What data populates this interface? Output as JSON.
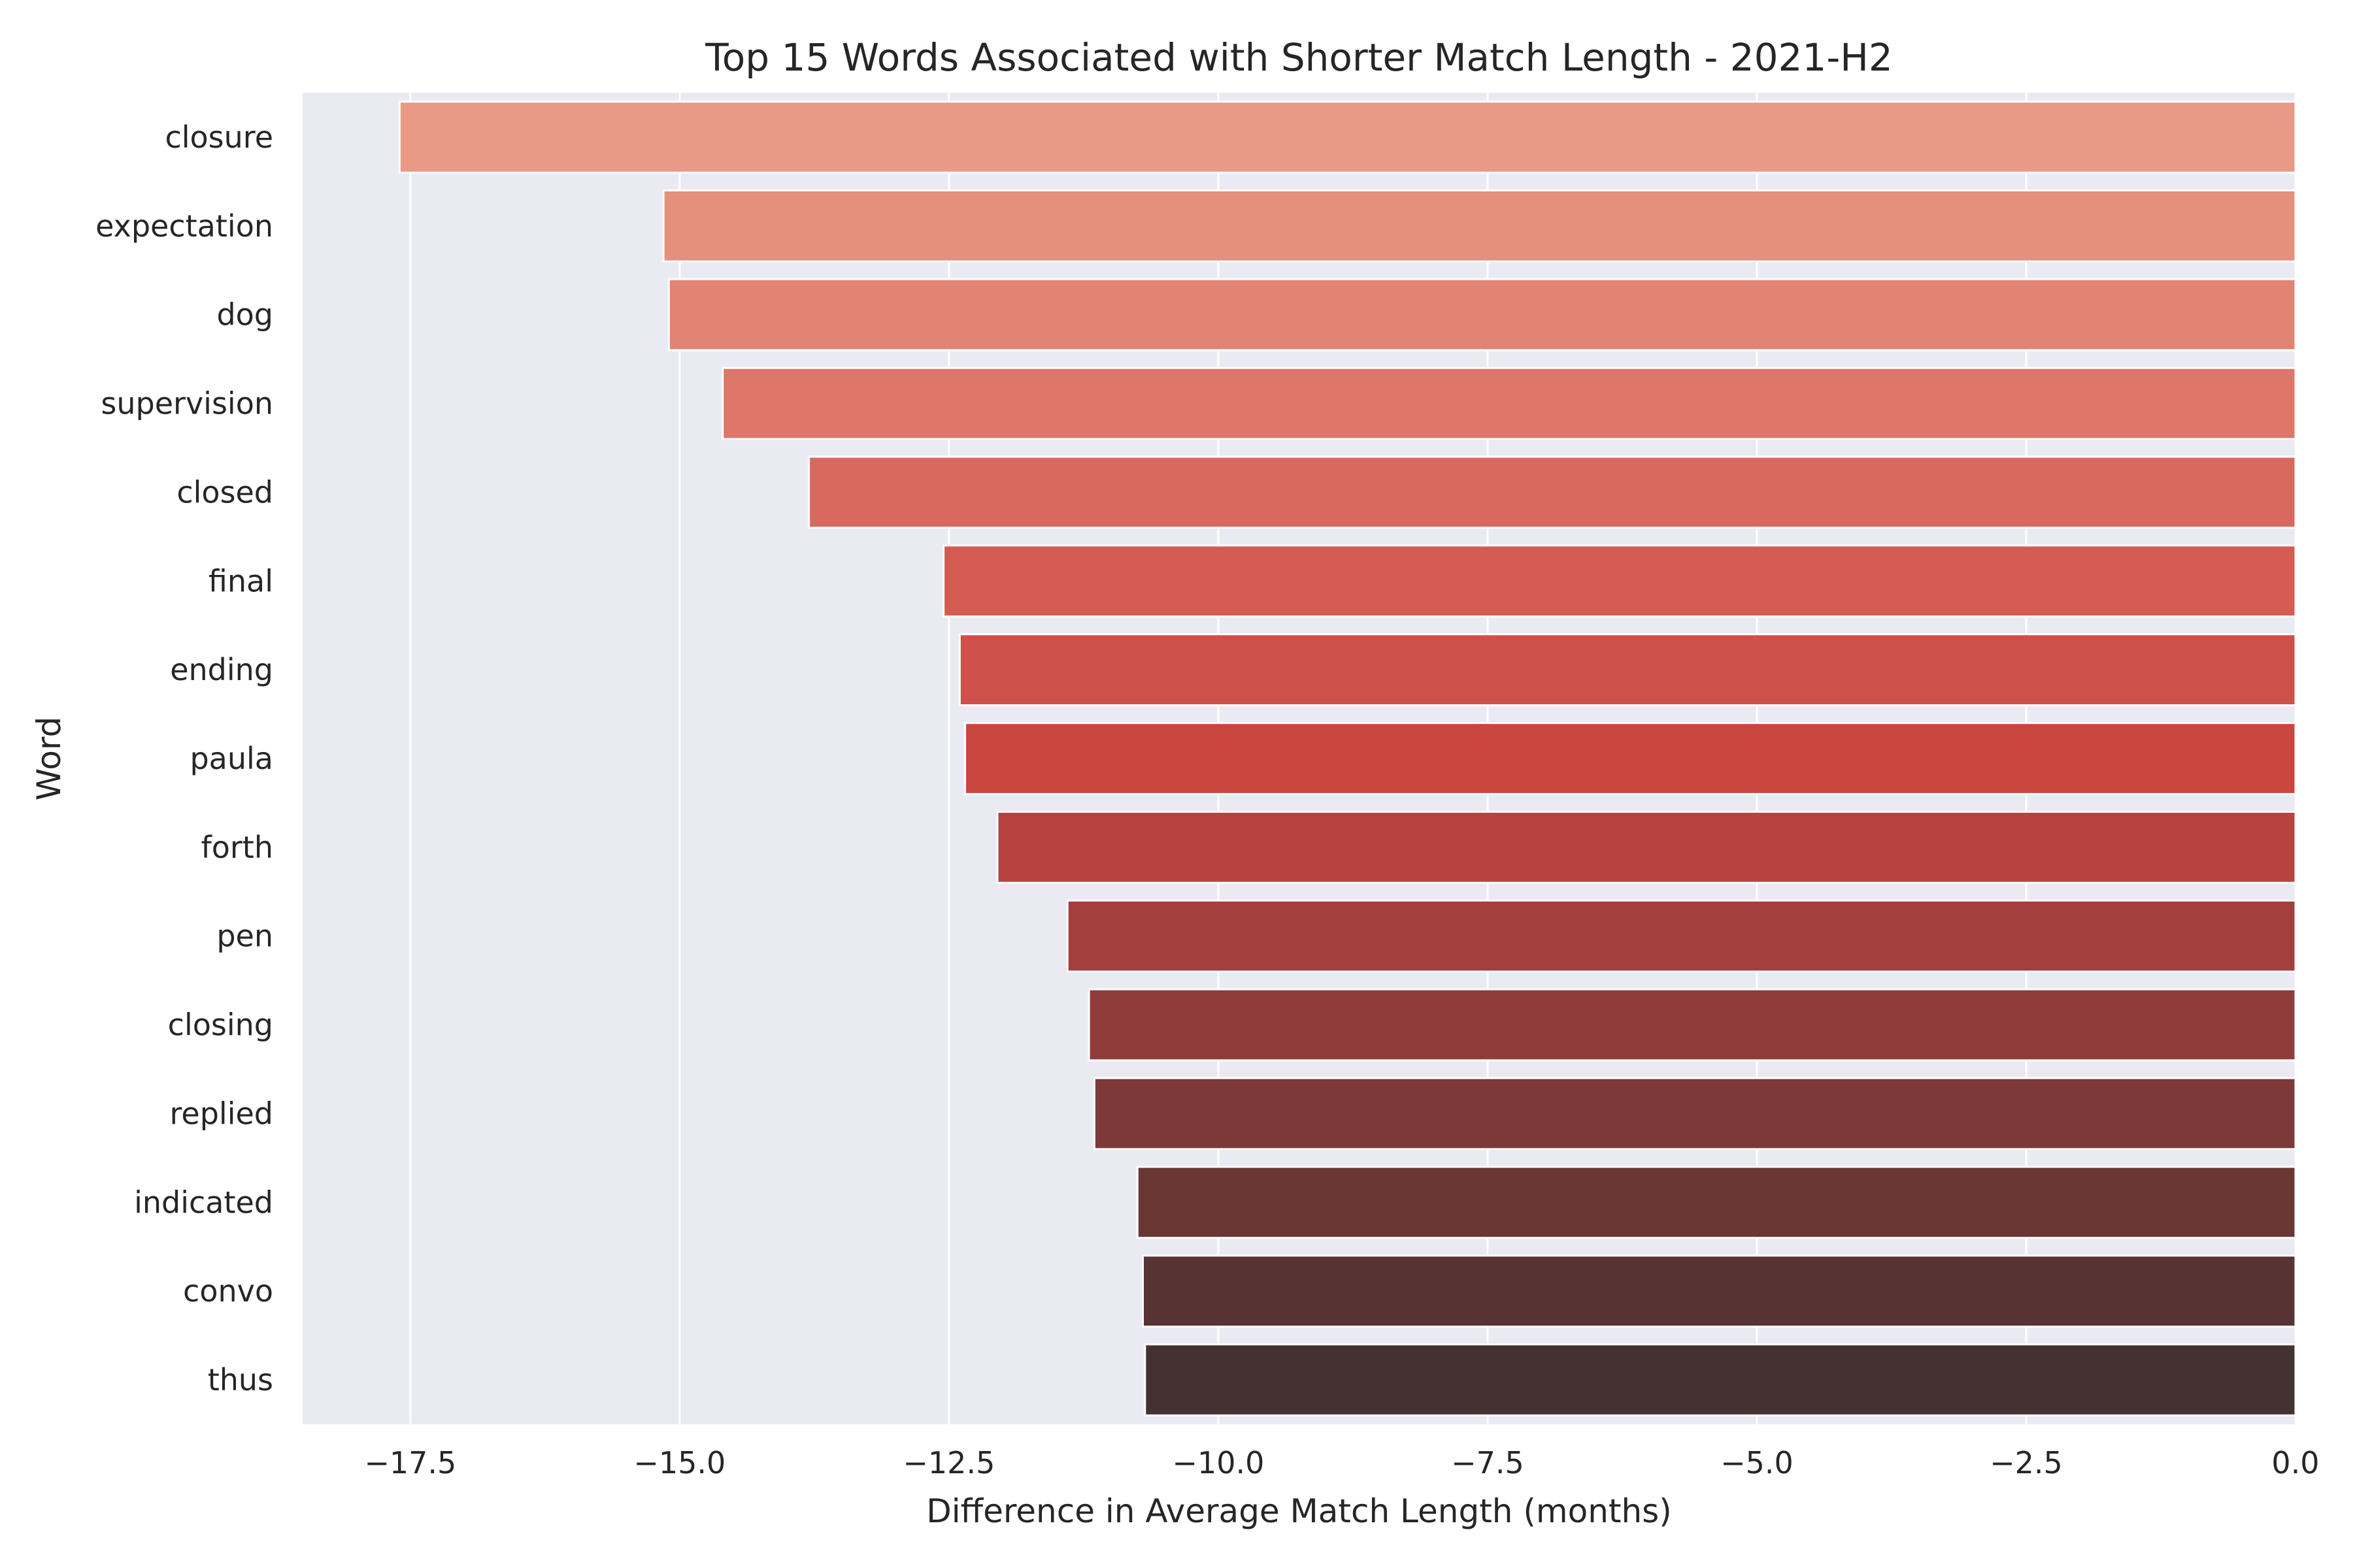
{
  "chart_data": {
    "type": "bar",
    "orientation": "horizontal",
    "title": "Top 15 Words Associated with Shorter Match Length - 2021-H2",
    "xlabel": "Difference in Average Match Length (months)",
    "ylabel": "Word",
    "xlim": [
      -18.5,
      0.0
    ],
    "xticks": [
      -17.5,
      -15.0,
      -12.5,
      -10.0,
      -7.5,
      -5.0,
      -2.5,
      0.0
    ],
    "xtick_labels": [
      "−17.5",
      "−15.0",
      "−12.5",
      "−10.0",
      "−7.5",
      "−5.0",
      "−2.5",
      "0.0"
    ],
    "grid": true,
    "background": "#eaeaf2",
    "categories": [
      "closure",
      "expectation",
      "dog",
      "supervision",
      "closed",
      "final",
      "ending",
      "paula",
      "forth",
      "pen",
      "closing",
      "replied",
      "indicated",
      "convo",
      "thus"
    ],
    "values": [
      -17.6,
      -15.15,
      -15.1,
      -14.6,
      -13.8,
      -12.55,
      -12.4,
      -12.35,
      -12.05,
      -11.4,
      -11.2,
      -11.15,
      -10.75,
      -10.7,
      -10.68
    ],
    "colors": [
      "#e99a87",
      "#e5907c",
      "#e18473",
      "#de7669",
      "#d9695e",
      "#d35b51",
      "#cf5048",
      "#c9463e",
      "#b6433f",
      "#a33f3c",
      "#8e3b3a",
      "#7d3938",
      "#6a3634",
      "#573433",
      "#443131"
    ]
  }
}
